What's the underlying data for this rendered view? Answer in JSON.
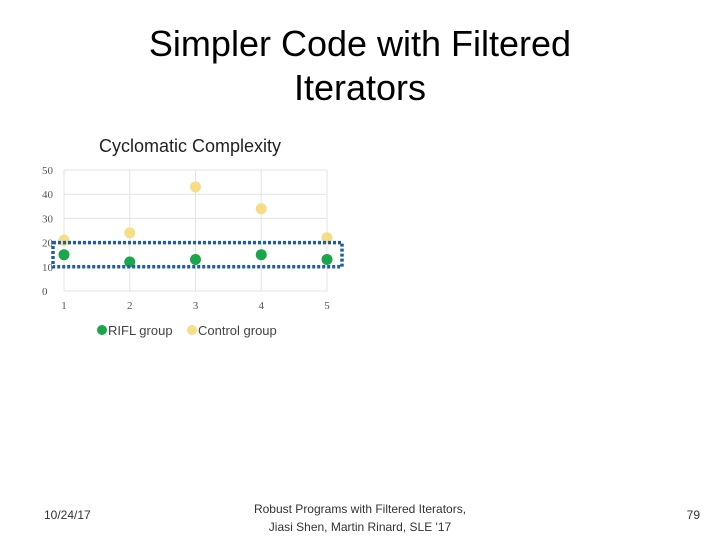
{
  "slide": {
    "title_line1": "Simpler  Code  with  Filtered",
    "title_line2": "Iterators"
  },
  "chart_data": {
    "type": "scatter",
    "title": "Cyclomatic Complexity",
    "x": [
      1,
      2,
      3,
      4,
      5
    ],
    "xlim": [
      1,
      5
    ],
    "ylim": [
      0,
      50
    ],
    "yticks": [
      0,
      10,
      20,
      30,
      40,
      50
    ],
    "xticks": [
      1,
      2,
      3,
      4,
      5
    ],
    "grid": true,
    "legend_position": "bottom",
    "series": [
      {
        "name": "RIFL group",
        "color": "#1aa64a",
        "values": [
          15,
          12,
          13,
          15,
          13
        ]
      },
      {
        "name": "Control group",
        "color": "#f7dd86",
        "values": [
          21,
          24,
          43,
          34,
          22
        ]
      }
    ],
    "annotation": {
      "type": "dotted-box",
      "color": "#1f5fa0",
      "y_range": [
        10,
        20
      ]
    }
  },
  "footer": {
    "date": "10/24/17",
    "citation_line1": "Robust Programs with Filtered Iterators,",
    "citation_line2": "Jiasi Shen, Martin Rinard, SLE '17",
    "page": "79"
  }
}
